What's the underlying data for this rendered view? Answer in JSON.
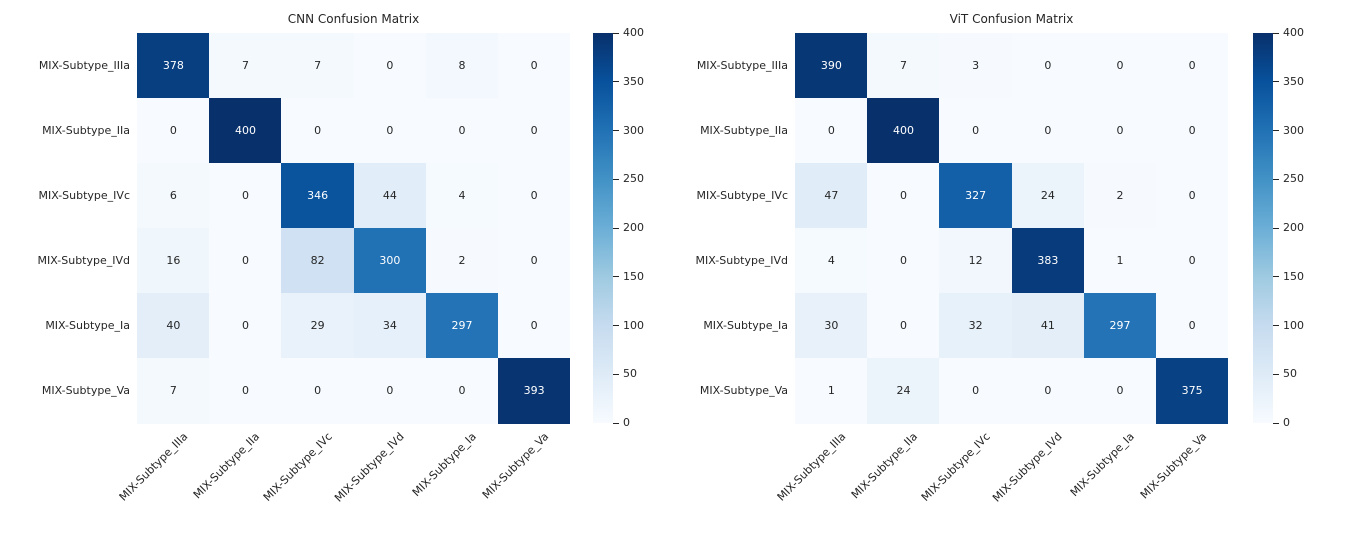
{
  "chart_data": [
    {
      "type": "heatmap",
      "title": "CNN Confusion Matrix",
      "x_categories": [
        "MIX-Subtype_IIIa",
        "MIX-Subtype_IIa",
        "MIX-Subtype_IVc",
        "MIX-Subtype_IVd",
        "MIX-Subtype_Ia",
        "MIX-Subtype_Va"
      ],
      "y_categories": [
        "MIX-Subtype_IIIa",
        "MIX-Subtype_IIa",
        "MIX-Subtype_IVc",
        "MIX-Subtype_IVd",
        "MIX-Subtype_Ia",
        "MIX-Subtype_Va"
      ],
      "values": [
        [
          378,
          7,
          7,
          0,
          8,
          0
        ],
        [
          0,
          400,
          0,
          0,
          0,
          0
        ],
        [
          6,
          0,
          346,
          44,
          4,
          0
        ],
        [
          16,
          0,
          82,
          300,
          2,
          0
        ],
        [
          40,
          0,
          29,
          34,
          297,
          0
        ],
        [
          7,
          0,
          0,
          0,
          0,
          393
        ]
      ],
      "vmin": 0,
      "vmax": 400,
      "colorbar_ticks": [
        0,
        50,
        100,
        150,
        200,
        250,
        300,
        350,
        400
      ],
      "colormap": "Blues",
      "annotated": true,
      "legend_position": "right-colorbar"
    },
    {
      "type": "heatmap",
      "title": "ViT Confusion Matrix",
      "x_categories": [
        "MIX-Subtype_IIIa",
        "MIX-Subtype_IIa",
        "MIX-Subtype_IVc",
        "MIX-Subtype_IVd",
        "MIX-Subtype_Ia",
        "MIX-Subtype_Va"
      ],
      "y_categories": [
        "MIX-Subtype_IIIa",
        "MIX-Subtype_IIa",
        "MIX-Subtype_IVc",
        "MIX-Subtype_IVd",
        "MIX-Subtype_Ia",
        "MIX-Subtype_Va"
      ],
      "values": [
        [
          390,
          7,
          3,
          0,
          0,
          0
        ],
        [
          0,
          400,
          0,
          0,
          0,
          0
        ],
        [
          47,
          0,
          327,
          24,
          2,
          0
        ],
        [
          4,
          0,
          12,
          383,
          1,
          0
        ],
        [
          30,
          0,
          32,
          41,
          297,
          0
        ],
        [
          1,
          24,
          0,
          0,
          0,
          375
        ]
      ],
      "vmin": 0,
      "vmax": 400,
      "colorbar_ticks": [
        0,
        50,
        100,
        150,
        200,
        250,
        300,
        350,
        400
      ],
      "colormap": "Blues",
      "annotated": true,
      "legend_position": "right-colorbar"
    }
  ],
  "colors": {
    "background": "#ffffff",
    "annotation_dark_text": "#262626",
    "annotation_light_text": "#ffffff",
    "tick_text": "#262626",
    "blues_colormap_anchors": [
      "#f7fbff",
      "#deebf7",
      "#c6dbef",
      "#9ecae1",
      "#6baed6",
      "#4292c6",
      "#2171b5",
      "#08519c",
      "#08306b"
    ]
  }
}
